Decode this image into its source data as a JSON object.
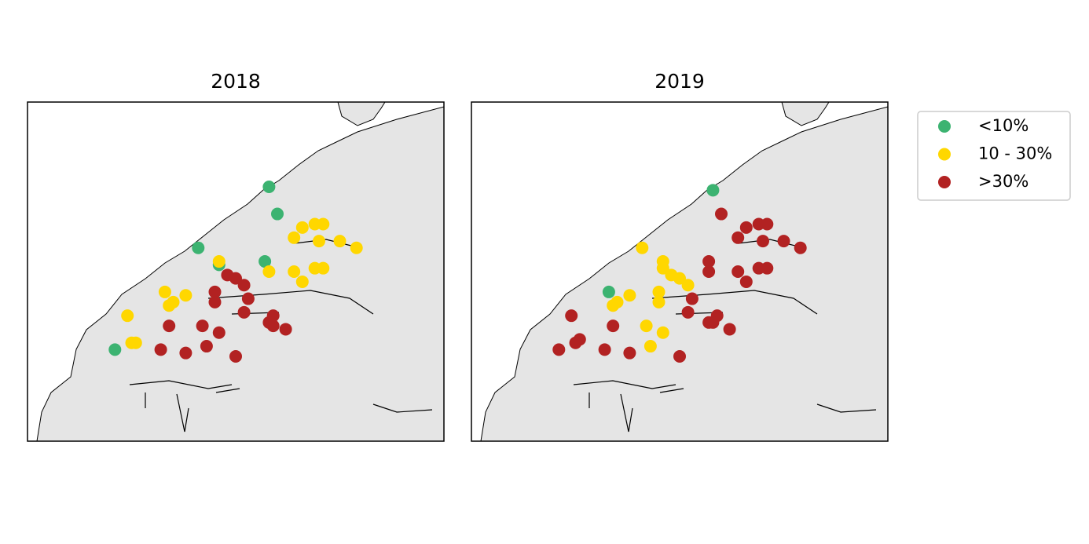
{
  "chart_data": [
    {
      "type": "scatter",
      "title": "2018",
      "series": [
        {
          "name": "<10%",
          "color": "#3cb371",
          "x": [
            58,
            60,
            41,
            46,
            57,
            21
          ],
          "y": [
            75,
            67,
            57,
            52,
            53,
            27
          ]
        },
        {
          "name": "10 - 30%",
          "color": "#ffd700",
          "x": [
            66,
            69,
            71,
            64,
            70,
            75,
            79,
            46,
            58,
            64,
            69,
            71,
            66,
            33,
            38,
            35,
            34,
            24,
            26,
            25
          ],
          "y": [
            63,
            64,
            64,
            60,
            59,
            59,
            57,
            53,
            50,
            50,
            51,
            51,
            47,
            44,
            43,
            41,
            40,
            37,
            29,
            29
          ]
        },
        {
          "name": ">30%",
          "color": "#b22222",
          "x": [
            48,
            50,
            52,
            45,
            53,
            45,
            52,
            59,
            58,
            59,
            62,
            34,
            42,
            46,
            43,
            32,
            38,
            50
          ],
          "y": [
            49,
            48,
            46,
            44,
            42,
            41,
            38,
            37,
            35,
            34,
            33,
            34,
            34,
            32,
            28,
            27,
            26,
            25
          ]
        }
      ]
    },
    {
      "type": "scatter",
      "title": "2019",
      "series": [
        {
          "name": "<10%",
          "color": "#3cb371",
          "x": [
            58,
            33
          ],
          "y": [
            74,
            44
          ]
        },
        {
          "name": "10 - 30%",
          "color": "#ffd700",
          "x": [
            41,
            46,
            46,
            48,
            50,
            52,
            45,
            38,
            35,
            34,
            45,
            42,
            46,
            43
          ],
          "y": [
            57,
            53,
            51,
            49,
            48,
            46,
            44,
            43,
            41,
            40,
            41,
            34,
            32,
            28
          ]
        },
        {
          "name": ">30%",
          "color": "#b22222",
          "x": [
            60,
            66,
            69,
            71,
            64,
            70,
            75,
            79,
            57,
            57,
            64,
            69,
            71,
            66,
            53,
            52,
            59,
            57,
            58,
            62,
            24,
            26,
            25,
            34,
            32,
            21,
            38,
            50
          ],
          "y": [
            67,
            63,
            64,
            64,
            60,
            59,
            59,
            57,
            53,
            50,
            50,
            51,
            51,
            47,
            42,
            38,
            37,
            35,
            35,
            33,
            37,
            30,
            29,
            34,
            27,
            27,
            26,
            25
          ]
        }
      ]
    }
  ]
}
